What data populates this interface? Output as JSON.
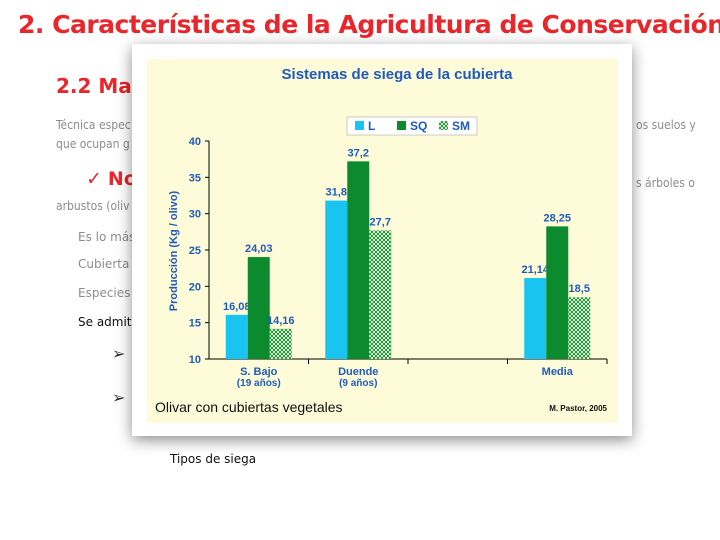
{
  "slide": {
    "title": "2.  Características de la Agricultura de Conservación",
    "section_title": "2.2  Ma",
    "para_line1_left": "Técnica espec",
    "para_line1_right": "os suelos y",
    "para_line2_left": "que ocupan g",
    "bullet_check": "✓",
    "bullet_label": "No",
    "bullet_right": "s árboles o",
    "bullet_line2_left": "arbustos (oliv",
    "items": [
      "Es lo más",
      "Cubierta v",
      "Especies c",
      "Se admite"
    ],
    "arrow_glyph": "➢",
    "sub_items": [
      "Tipos de siega"
    ],
    "faded_item": "..."
  },
  "colors": {
    "title_red": "#e8262b",
    "chart_bg": "#fdfbd8",
    "title_blue": "#1f5bbf",
    "series_L": "#19c4f0",
    "series_SQ": "#0c8a2e",
    "series_SM_bg": "#cfe8cf",
    "series_SM_dot": "#2a9a3c"
  },
  "chart_data": {
    "type": "bar",
    "title": "Sistemas de siega de la cubierta",
    "ylabel": "Producción (Kg / olivo)",
    "ylim": [
      10,
      40
    ],
    "yticks": [
      10,
      15,
      20,
      25,
      30,
      35,
      40
    ],
    "categories": [
      {
        "name": "S. Bajo",
        "sub": "(19 años)"
      },
      {
        "name": "Duende",
        "sub": "(9 años)"
      },
      {
        "name": "",
        "sub": ""
      },
      {
        "name": "Media",
        "sub": ""
      }
    ],
    "series": [
      {
        "name": "L",
        "values": [
          16.08,
          31.8,
          null,
          21.14
        ],
        "labels": [
          "16,08",
          "31,8",
          "",
          "21,14"
        ]
      },
      {
        "name": "SQ",
        "values": [
          24.03,
          37.2,
          null,
          28.25
        ],
        "labels": [
          "24,03",
          "37,2",
          "",
          "28,25"
        ]
      },
      {
        "name": "SM",
        "values": [
          14.16,
          27.7,
          null,
          18.5
        ],
        "labels": [
          "14,16",
          "27,7",
          "",
          "18,5"
        ]
      }
    ],
    "grid": false,
    "legend": "top",
    "caption": "Olivar con cubiertas vegetales",
    "credit": "M. Pastor, 2005"
  }
}
